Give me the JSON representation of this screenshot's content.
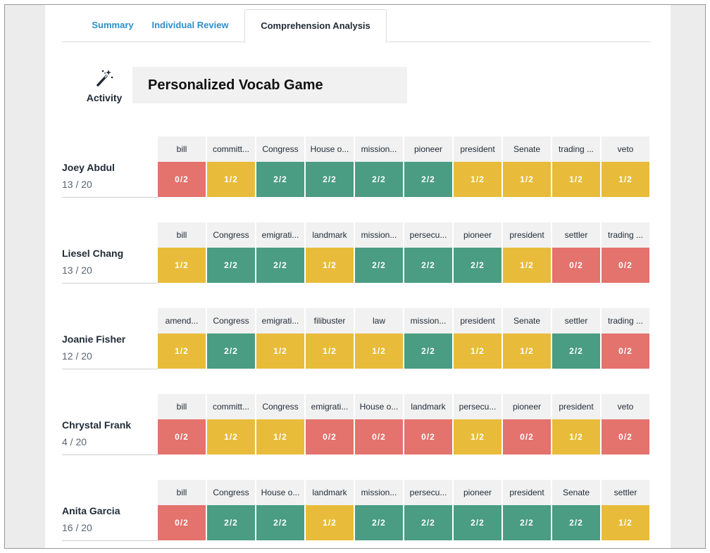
{
  "tabs": [
    {
      "label": "Summary"
    },
    {
      "label": "Individual Review"
    },
    {
      "label": "Comprehension Analysis"
    }
  ],
  "activity": {
    "label": "Activity",
    "icon": "magic-wand-icon",
    "title": "Personalized Vocab Game"
  },
  "colors": {
    "low": "#e4726d",
    "mid": "#e8bc3a",
    "high": "#4a9c82"
  },
  "students": [
    {
      "name": "Joey Abdul",
      "score": "13 / 20",
      "words": [
        {
          "word": "bill",
          "score": "0/2",
          "level": "red"
        },
        {
          "word": "committ...",
          "score": "1/2",
          "level": "yellow"
        },
        {
          "word": "Congress",
          "score": "2/2",
          "level": "green"
        },
        {
          "word": "House o...",
          "score": "2/2",
          "level": "green"
        },
        {
          "word": "mission...",
          "score": "2/2",
          "level": "green"
        },
        {
          "word": "pioneer",
          "score": "2/2",
          "level": "green"
        },
        {
          "word": "president",
          "score": "1/2",
          "level": "yellow"
        },
        {
          "word": "Senate",
          "score": "1/2",
          "level": "yellow"
        },
        {
          "word": "trading ...",
          "score": "1/2",
          "level": "yellow"
        },
        {
          "word": "veto",
          "score": "1/2",
          "level": "yellow"
        }
      ]
    },
    {
      "name": "Liesel Chang",
      "score": "13 / 20",
      "words": [
        {
          "word": "bill",
          "score": "1/2",
          "level": "yellow"
        },
        {
          "word": "Congress",
          "score": "2/2",
          "level": "green"
        },
        {
          "word": "emigrati...",
          "score": "2/2",
          "level": "green"
        },
        {
          "word": "landmark",
          "score": "1/2",
          "level": "yellow"
        },
        {
          "word": "mission...",
          "score": "2/2",
          "level": "green"
        },
        {
          "word": "persecu...",
          "score": "2/2",
          "level": "green"
        },
        {
          "word": "pioneer",
          "score": "2/2",
          "level": "green"
        },
        {
          "word": "president",
          "score": "1/2",
          "level": "yellow"
        },
        {
          "word": "settler",
          "score": "0/2",
          "level": "red"
        },
        {
          "word": "trading ...",
          "score": "0/2",
          "level": "red"
        }
      ]
    },
    {
      "name": "Joanie Fisher",
      "score": "12 / 20",
      "words": [
        {
          "word": "amend...",
          "score": "1/2",
          "level": "yellow"
        },
        {
          "word": "Congress",
          "score": "2/2",
          "level": "green"
        },
        {
          "word": "emigrati...",
          "score": "1/2",
          "level": "yellow"
        },
        {
          "word": "filibuster",
          "score": "1/2",
          "level": "yellow"
        },
        {
          "word": "law",
          "score": "1/2",
          "level": "yellow"
        },
        {
          "word": "mission...",
          "score": "2/2",
          "level": "green"
        },
        {
          "word": "president",
          "score": "1/2",
          "level": "yellow"
        },
        {
          "word": "Senate",
          "score": "1/2",
          "level": "yellow"
        },
        {
          "word": "settler",
          "score": "2/2",
          "level": "green"
        },
        {
          "word": "trading ...",
          "score": "0/2",
          "level": "red"
        }
      ]
    },
    {
      "name": "Chrystal Frank",
      "score": "4 / 20",
      "words": [
        {
          "word": "bill",
          "score": "0/2",
          "level": "red"
        },
        {
          "word": "committ...",
          "score": "1/2",
          "level": "yellow"
        },
        {
          "word": "Congress",
          "score": "1/2",
          "level": "yellow"
        },
        {
          "word": "emigrati...",
          "score": "0/2",
          "level": "red"
        },
        {
          "word": "House o...",
          "score": "0/2",
          "level": "red"
        },
        {
          "word": "landmark",
          "score": "0/2",
          "level": "red"
        },
        {
          "word": "persecu...",
          "score": "1/2",
          "level": "yellow"
        },
        {
          "word": "pioneer",
          "score": "0/2",
          "level": "red"
        },
        {
          "word": "president",
          "score": "1/2",
          "level": "yellow"
        },
        {
          "word": "veto",
          "score": "0/2",
          "level": "red"
        }
      ]
    },
    {
      "name": "Anita Garcia",
      "score": "16 / 20",
      "words": [
        {
          "word": "bill",
          "score": "0/2",
          "level": "red"
        },
        {
          "word": "Congress",
          "score": "2/2",
          "level": "green"
        },
        {
          "word": "House o...",
          "score": "2/2",
          "level": "green"
        },
        {
          "word": "landmark",
          "score": "1/2",
          "level": "yellow"
        },
        {
          "word": "mission...",
          "score": "2/2",
          "level": "green"
        },
        {
          "word": "persecu...",
          "score": "2/2",
          "level": "green"
        },
        {
          "word": "pioneer",
          "score": "2/2",
          "level": "green"
        },
        {
          "word": "president",
          "score": "2/2",
          "level": "green"
        },
        {
          "word": "Senate",
          "score": "2/2",
          "level": "green"
        },
        {
          "word": "settler",
          "score": "1/2",
          "level": "yellow"
        }
      ]
    }
  ]
}
